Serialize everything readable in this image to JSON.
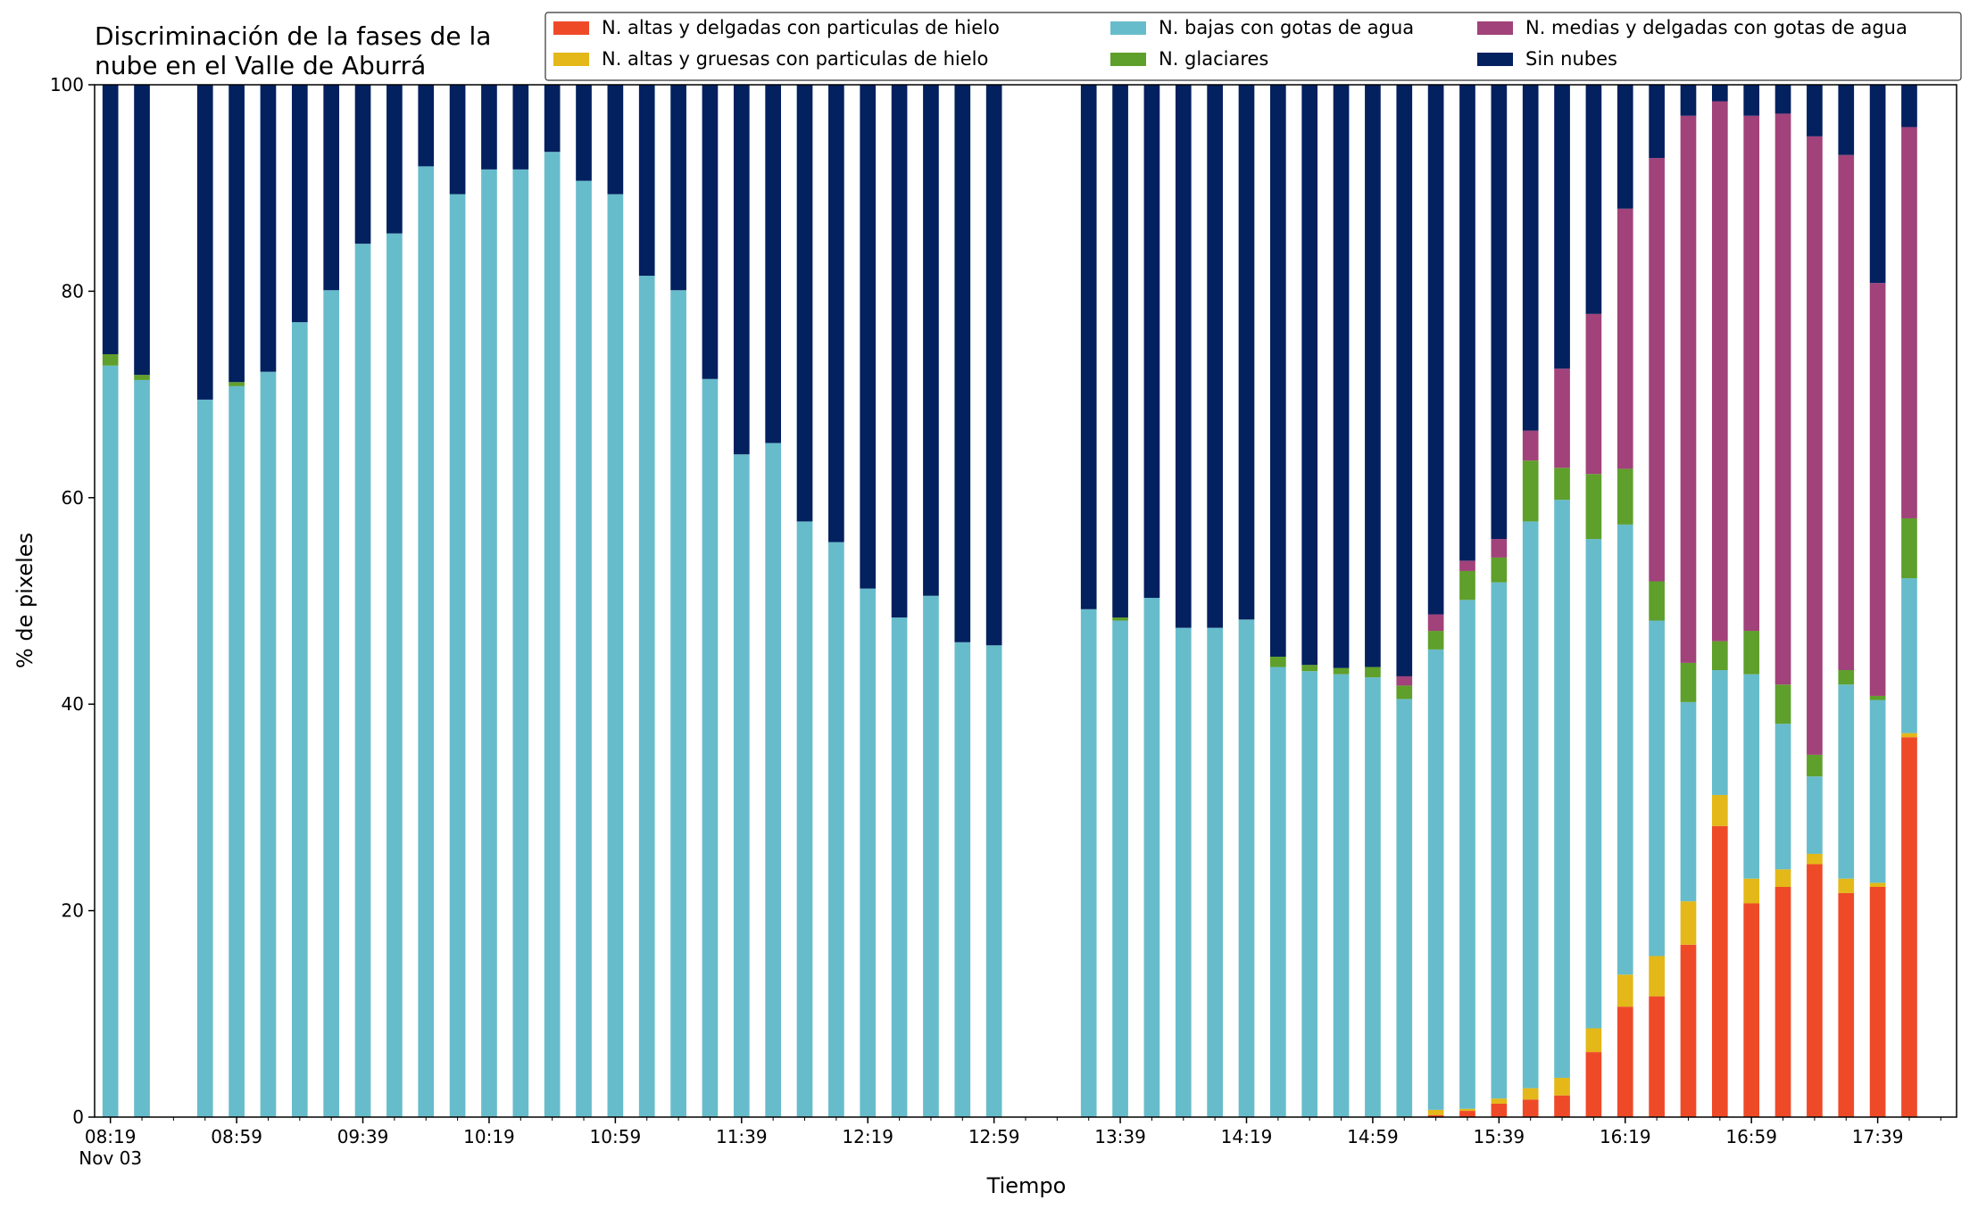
{
  "chart_data": {
    "type": "bar",
    "stacked": true,
    "title_lines": [
      "Discriminación de la fases de la",
      "nube en el Valle de Aburrá"
    ],
    "xlabel": "Tiempo",
    "ylabel": "% de pixeles",
    "ylim": [
      0,
      100
    ],
    "yticks": [
      0,
      20,
      40,
      60,
      80,
      100
    ],
    "grid": false,
    "legend_position": "top-right",
    "x_range": [
      -0.5,
      58.5
    ],
    "x_major_ticks": [
      {
        "slot": 0,
        "label": "08:19",
        "sublabel": "Nov 03"
      },
      {
        "slot": 4,
        "label": "08:59"
      },
      {
        "slot": 8,
        "label": "09:39"
      },
      {
        "slot": 12,
        "label": "10:19"
      },
      {
        "slot": 16,
        "label": "10:59"
      },
      {
        "slot": 20,
        "label": "11:39"
      },
      {
        "slot": 24,
        "label": "12:19"
      },
      {
        "slot": 28,
        "label": "12:59"
      },
      {
        "slot": 32,
        "label": "13:39"
      },
      {
        "slot": 36,
        "label": "14:19"
      },
      {
        "slot": 40,
        "label": "14:59"
      },
      {
        "slot": 44,
        "label": "15:39"
      },
      {
        "slot": 48,
        "label": "16:19"
      },
      {
        "slot": 52,
        "label": "16:59"
      },
      {
        "slot": 56,
        "label": "17:39"
      }
    ],
    "series": [
      {
        "name": "N. altas y delgadas con particulas de hielo",
        "color": "#ef4a28"
      },
      {
        "name": "N. altas y gruesas con particulas de hielo",
        "color": "#e3b818"
      },
      {
        "name": "N. bajas con gotas de agua",
        "color": "#67bccb"
      },
      {
        "name": "N. glaciares",
        "color": "#5f9f2b"
      },
      {
        "name": "N. medias y delgadas con gotas de agua",
        "color": "#a1427a"
      },
      {
        "name": "Sin nubes",
        "color": "#03205f"
      }
    ],
    "bars": [
      {
        "slot": 0,
        "values": [
          0,
          0,
          72.8,
          1.1,
          0,
          26.1
        ]
      },
      {
        "slot": 1,
        "values": [
          0,
          0,
          71.4,
          0.5,
          0,
          28.1
        ]
      },
      {
        "slot": 3,
        "values": [
          0,
          0,
          69.5,
          0,
          0,
          30.5
        ]
      },
      {
        "slot": 4,
        "values": [
          0,
          0,
          70.8,
          0.4,
          0,
          28.8
        ]
      },
      {
        "slot": 5,
        "values": [
          0,
          0,
          72.2,
          0,
          0,
          27.8
        ]
      },
      {
        "slot": 6,
        "values": [
          0,
          0,
          77.0,
          0,
          0,
          23.0
        ]
      },
      {
        "slot": 7,
        "values": [
          0,
          0,
          80.1,
          0,
          0,
          19.9
        ]
      },
      {
        "slot": 8,
        "values": [
          0,
          0,
          84.6,
          0,
          0,
          15.4
        ]
      },
      {
        "slot": 9,
        "values": [
          0,
          0,
          85.6,
          0,
          0,
          14.4
        ]
      },
      {
        "slot": 10,
        "values": [
          0,
          0,
          92.1,
          0,
          0,
          7.9
        ]
      },
      {
        "slot": 11,
        "values": [
          0,
          0,
          89.4,
          0,
          0,
          10.6
        ]
      },
      {
        "slot": 12,
        "values": [
          0,
          0,
          91.8,
          0,
          0,
          8.2
        ]
      },
      {
        "slot": 13,
        "values": [
          0,
          0,
          91.8,
          0,
          0,
          8.2
        ]
      },
      {
        "slot": 14,
        "values": [
          0,
          0,
          93.5,
          0,
          0,
          6.5
        ]
      },
      {
        "slot": 15,
        "values": [
          0,
          0,
          90.7,
          0,
          0,
          9.3
        ]
      },
      {
        "slot": 16,
        "values": [
          0,
          0,
          89.4,
          0,
          0,
          10.6
        ]
      },
      {
        "slot": 17,
        "values": [
          0,
          0,
          81.5,
          0,
          0,
          18.5
        ]
      },
      {
        "slot": 18,
        "values": [
          0,
          0,
          80.1,
          0,
          0,
          19.9
        ]
      },
      {
        "slot": 19,
        "values": [
          0,
          0,
          71.5,
          0,
          0,
          28.5
        ]
      },
      {
        "slot": 20,
        "values": [
          0,
          0,
          64.2,
          0,
          0,
          35.8
        ]
      },
      {
        "slot": 21,
        "values": [
          0,
          0,
          65.3,
          0,
          0,
          34.7
        ]
      },
      {
        "slot": 22,
        "values": [
          0,
          0,
          57.7,
          0,
          0,
          42.3
        ]
      },
      {
        "slot": 23,
        "values": [
          0,
          0,
          55.7,
          0,
          0,
          44.3
        ]
      },
      {
        "slot": 24,
        "values": [
          0,
          0,
          51.2,
          0,
          0,
          48.8
        ]
      },
      {
        "slot": 25,
        "values": [
          0,
          0,
          48.4,
          0,
          0,
          51.6
        ]
      },
      {
        "slot": 26,
        "values": [
          0,
          0,
          50.5,
          0,
          0,
          49.5
        ]
      },
      {
        "slot": 27,
        "values": [
          0,
          0,
          46.0,
          0,
          0,
          54.0
        ]
      },
      {
        "slot": 28,
        "values": [
          0,
          0,
          45.7,
          0,
          0,
          54.3
        ]
      },
      {
        "slot": 31,
        "values": [
          0,
          0,
          49.2,
          0,
          0,
          50.8
        ]
      },
      {
        "slot": 32,
        "values": [
          0,
          0,
          48.1,
          0.3,
          0,
          51.6
        ]
      },
      {
        "slot": 33,
        "values": [
          0,
          0,
          50.3,
          0,
          0,
          49.7
        ]
      },
      {
        "slot": 34,
        "values": [
          0,
          0,
          47.4,
          0,
          0,
          52.6
        ]
      },
      {
        "slot": 35,
        "values": [
          0,
          0,
          47.4,
          0,
          0,
          52.6
        ]
      },
      {
        "slot": 36,
        "values": [
          0,
          0,
          48.2,
          0,
          0,
          51.8
        ]
      },
      {
        "slot": 37,
        "values": [
          0,
          0,
          43.6,
          1.0,
          0,
          55.4
        ]
      },
      {
        "slot": 38,
        "values": [
          0,
          0,
          43.2,
          0.6,
          0,
          56.2
        ]
      },
      {
        "slot": 39,
        "values": [
          0,
          0,
          42.9,
          0.6,
          0,
          56.5
        ]
      },
      {
        "slot": 40,
        "values": [
          0,
          0,
          42.6,
          1.0,
          0,
          56.4
        ]
      },
      {
        "slot": 41,
        "values": [
          0,
          0,
          40.5,
          1.3,
          0.9,
          57.3
        ]
      },
      {
        "slot": 42,
        "values": [
          0.2,
          0.5,
          44.6,
          1.8,
          1.6,
          51.3
        ]
      },
      {
        "slot": 43,
        "values": [
          0.6,
          0.2,
          49.3,
          2.8,
          1.0,
          46.1
        ]
      },
      {
        "slot": 44,
        "values": [
          1.3,
          0.5,
          50.0,
          2.4,
          1.8,
          44.0
        ]
      },
      {
        "slot": 45,
        "values": [
          1.7,
          1.1,
          54.9,
          5.9,
          2.9,
          33.5
        ]
      },
      {
        "slot": 46,
        "values": [
          2.1,
          1.7,
          56.0,
          3.1,
          9.6,
          27.5
        ]
      },
      {
        "slot": 47,
        "values": [
          6.3,
          2.3,
          47.4,
          6.3,
          15.5,
          22.2
        ]
      },
      {
        "slot": 48,
        "values": [
          10.7,
          3.1,
          43.6,
          5.4,
          25.2,
          12.0
        ]
      },
      {
        "slot": 49,
        "values": [
          11.7,
          3.9,
          32.5,
          3.8,
          41.0,
          7.1
        ]
      },
      {
        "slot": 50,
        "values": [
          16.7,
          4.2,
          19.3,
          3.8,
          53.0,
          3.0
        ]
      },
      {
        "slot": 51,
        "values": [
          28.2,
          3.0,
          12.1,
          2.8,
          52.3,
          1.6
        ]
      },
      {
        "slot": 52,
        "values": [
          20.7,
          2.4,
          19.8,
          4.2,
          49.9,
          3.0
        ]
      },
      {
        "slot": 53,
        "values": [
          22.3,
          1.7,
          14.1,
          3.8,
          55.3,
          2.8
        ]
      },
      {
        "slot": 54,
        "values": [
          24.5,
          1.0,
          7.5,
          2.1,
          59.9,
          5.0
        ]
      },
      {
        "slot": 55,
        "values": [
          21.7,
          1.4,
          18.8,
          1.4,
          49.9,
          6.8
        ]
      },
      {
        "slot": 56,
        "values": [
          22.3,
          0.4,
          17.7,
          0.4,
          40.0,
          19.2
        ]
      },
      {
        "slot": 57,
        "values": [
          36.8,
          0.4,
          15.0,
          5.8,
          37.9,
          4.1
        ]
      }
    ]
  }
}
